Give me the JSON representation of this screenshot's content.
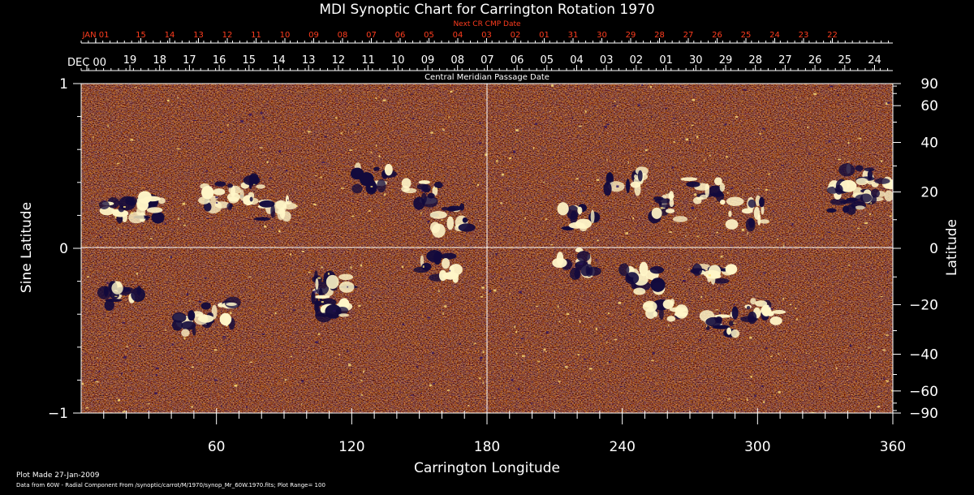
{
  "title": "MDI Synoptic Chart for Carrington Rotation 1970",
  "colors": {
    "background": "#000000",
    "axis": "#ffffff",
    "next_cmp": "#ff3c1e",
    "map_base": "#c8461c",
    "map_mid": "#ff8c2a",
    "positive": "#fff6c8",
    "negative": "#120a3c"
  },
  "top_axis": {
    "next_label": "Next CR CMP Date",
    "next_dates": [
      "JAN 01",
      "15",
      "14",
      "13",
      "12",
      "11",
      "10",
      "09",
      "08",
      "07",
      "06",
      "05",
      "04",
      "03",
      "02",
      "01",
      "31",
      "30",
      "29",
      "28",
      "27",
      "26",
      "25",
      "24",
      "23",
      "22"
    ],
    "cmp_label": "Central Meridian Passage Date",
    "cmp_dates": [
      "DEC 00",
      "19",
      "18",
      "17",
      "16",
      "15",
      "14",
      "13",
      "12",
      "11",
      "10",
      "09",
      "08",
      "07",
      "06",
      "05",
      "04",
      "03",
      "02",
      "01",
      "30",
      "29",
      "28",
      "27",
      "26",
      "25",
      "24"
    ]
  },
  "chart_data": {
    "type": "heatmap",
    "title": "MDI Synoptic Chart for Carrington Rotation 1970",
    "xlabel": "Carrington Longitude",
    "ylabel": "Sine Latitude",
    "y2label": "Latitude",
    "xlim": [
      0,
      360
    ],
    "ylim": [
      -1,
      1
    ],
    "x_ticks": [
      60,
      120,
      180,
      240,
      300,
      360
    ],
    "y_ticks": [
      -1,
      0,
      1
    ],
    "y2_ticks": [
      90,
      60,
      40,
      20,
      0,
      -20,
      -40,
      -60,
      -90
    ],
    "grid": "lines at longitude 180 and sine latitude 0",
    "plot_range": 100
  },
  "footer": {
    "plot_made": "Plot Made 27-Jan-2009",
    "source": "Data from 60W - Radial Component From /synoptic/carrot/M/1970/synop_Mr_60W.1970.fits; Plot Range=  100"
  }
}
